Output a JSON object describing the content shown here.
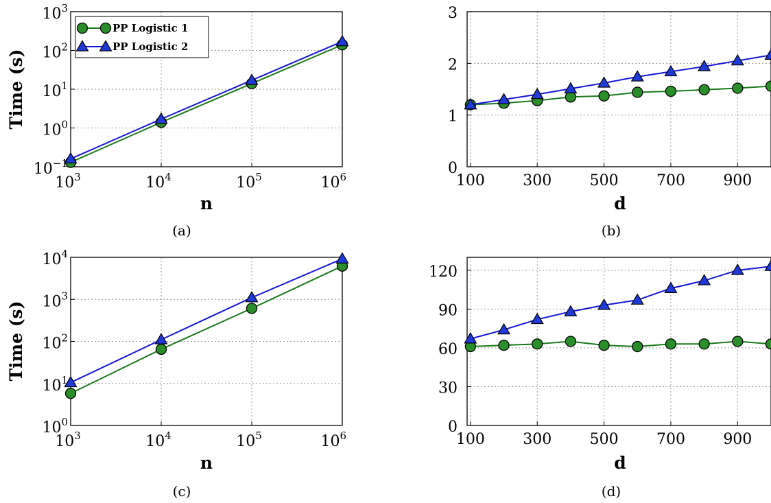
{
  "colors": {
    "series1": "#1a7a1a",
    "series1_fill": "#2a8f2a",
    "series2": "#1515d8",
    "series2_fill": "#1f3ad8"
  },
  "chart_data": [
    {
      "id": "a",
      "type": "line",
      "caption": "(a)",
      "xlabel": "n",
      "ylabel": "Time (s)",
      "xscale": "log",
      "yscale": "log",
      "xlim": [
        1000,
        1000000
      ],
      "ylim": [
        0.1,
        1000
      ],
      "x_ticks": [
        {
          "base": "10",
          "exp": "3",
          "v": 1000
        },
        {
          "base": "10",
          "exp": "4",
          "v": 10000
        },
        {
          "base": "10",
          "exp": "5",
          "v": 100000
        },
        {
          "base": "10",
          "exp": "6",
          "v": 1000000
        }
      ],
      "y_ticks": [
        {
          "base": "10",
          "exp": "−1",
          "v": 0.1
        },
        {
          "base": "10",
          "exp": "0",
          "v": 1
        },
        {
          "base": "10",
          "exp": "1",
          "v": 10
        },
        {
          "base": "10",
          "exp": "2",
          "v": 100
        },
        {
          "base": "10",
          "exp": "3",
          "v": 1000
        }
      ],
      "legend": {
        "placement": "top-left",
        "entries": [
          "PP Logistic 1",
          "PP Logistic 2"
        ]
      },
      "grid": true,
      "series": [
        {
          "name": "PP Logistic 1",
          "marker": "circle",
          "x": [
            1000,
            10000,
            100000,
            1000000
          ],
          "y": [
            0.13,
            1.4,
            14,
            140
          ]
        },
        {
          "name": "PP Logistic 2",
          "marker": "triangle",
          "x": [
            1000,
            10000,
            100000,
            1000000
          ],
          "y": [
            0.16,
            1.7,
            17,
            170
          ]
        }
      ]
    },
    {
      "id": "b",
      "type": "line",
      "caption": "(b)",
      "xlabel": "d",
      "ylabel": "",
      "xscale": "linear",
      "yscale": "linear",
      "xlim": [
        90,
        1000
      ],
      "ylim": [
        0,
        3
      ],
      "x_ticks": [
        {
          "label": "100",
          "v": 100
        },
        {
          "label": "300",
          "v": 300
        },
        {
          "label": "500",
          "v": 500
        },
        {
          "label": "700",
          "v": 700
        },
        {
          "label": "900",
          "v": 900
        }
      ],
      "y_ticks": [
        {
          "label": "0",
          "v": 0
        },
        {
          "label": "1",
          "v": 1
        },
        {
          "label": "2",
          "v": 2
        },
        {
          "label": "3",
          "v": 3
        }
      ],
      "grid": true,
      "series": [
        {
          "name": "PP Logistic 1",
          "marker": "circle",
          "x": [
            100,
            200,
            300,
            400,
            500,
            600,
            700,
            800,
            900,
            1000
          ],
          "y": [
            1.2,
            1.23,
            1.28,
            1.35,
            1.37,
            1.44,
            1.46,
            1.49,
            1.52,
            1.56
          ]
        },
        {
          "name": "PP Logistic 2",
          "marker": "triangle",
          "x": [
            100,
            200,
            300,
            400,
            500,
            600,
            700,
            800,
            900,
            1000
          ],
          "y": [
            1.2,
            1.3,
            1.4,
            1.51,
            1.62,
            1.74,
            1.84,
            1.94,
            2.05,
            2.16
          ]
        }
      ]
    },
    {
      "id": "c",
      "type": "line",
      "caption": "(c)",
      "xlabel": "n",
      "ylabel": "Time (s)",
      "xscale": "log",
      "yscale": "log",
      "xlim": [
        1000,
        1000000
      ],
      "ylim": [
        1,
        10000
      ],
      "x_ticks": [
        {
          "base": "10",
          "exp": "3",
          "v": 1000
        },
        {
          "base": "10",
          "exp": "4",
          "v": 10000
        },
        {
          "base": "10",
          "exp": "5",
          "v": 100000
        },
        {
          "base": "10",
          "exp": "6",
          "v": 1000000
        }
      ],
      "y_ticks": [
        {
          "base": "10",
          "exp": "0",
          "v": 1
        },
        {
          "base": "10",
          "exp": "1",
          "v": 10
        },
        {
          "base": "10",
          "exp": "2",
          "v": 100
        },
        {
          "base": "10",
          "exp": "3",
          "v": 1000
        },
        {
          "base": "10",
          "exp": "4",
          "v": 10000
        }
      ],
      "grid": true,
      "series": [
        {
          "name": "PP Logistic 1",
          "marker": "circle",
          "x": [
            1000,
            10000,
            100000,
            1000000
          ],
          "y": [
            5.8,
            65,
            610,
            6200
          ]
        },
        {
          "name": "PP Logistic 2",
          "marker": "triangle",
          "x": [
            1000,
            10000,
            100000,
            1000000
          ],
          "y": [
            10.5,
            110,
            1100,
            9200
          ]
        }
      ]
    },
    {
      "id": "d",
      "type": "line",
      "caption": "(d)",
      "xlabel": "d",
      "ylabel": "",
      "xscale": "linear",
      "yscale": "linear",
      "xlim": [
        90,
        1000
      ],
      "ylim": [
        0,
        130
      ],
      "x_ticks": [
        {
          "label": "100",
          "v": 100
        },
        {
          "label": "300",
          "v": 300
        },
        {
          "label": "500",
          "v": 500
        },
        {
          "label": "700",
          "v": 700
        },
        {
          "label": "900",
          "v": 900
        }
      ],
      "y_ticks": [
        {
          "label": "0",
          "v": 0
        },
        {
          "label": "30",
          "v": 30
        },
        {
          "label": "60",
          "v": 60
        },
        {
          "label": "90",
          "v": 90
        },
        {
          "label": "120",
          "v": 120
        }
      ],
      "grid": true,
      "series": [
        {
          "name": "PP Logistic 1",
          "marker": "circle",
          "x": [
            100,
            200,
            300,
            400,
            500,
            600,
            700,
            800,
            900,
            1000
          ],
          "y": [
            61,
            62,
            63,
            65,
            62,
            61,
            63,
            63,
            65,
            63
          ]
        },
        {
          "name": "PP Logistic 2",
          "marker": "triangle",
          "x": [
            100,
            200,
            300,
            400,
            500,
            600,
            700,
            800,
            900,
            1000
          ],
          "y": [
            67,
            74,
            82,
            88,
            93,
            97,
            106,
            112,
            120,
            123
          ]
        }
      ]
    }
  ]
}
